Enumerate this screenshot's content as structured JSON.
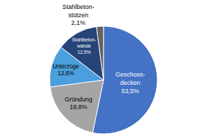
{
  "chart_data": {
    "type": "pie",
    "categories": [
      "Geschoss-\ndecken",
      "Gründung",
      "Unterzüge",
      "Stahlbeton-\nwände",
      "Stahlbeton-\nstützen"
    ],
    "values": [
      53.5,
      19.8,
      12.6,
      12.5,
      2.1
    ],
    "value_labels": [
      "53,5%",
      "19,8%",
      "12,6%",
      "12,5%",
      "2,1%"
    ],
    "colors": [
      "#4472c4",
      "#a5a5a5",
      "#4a9fdc",
      "#264478",
      "#636363"
    ],
    "data_labels": true
  }
}
